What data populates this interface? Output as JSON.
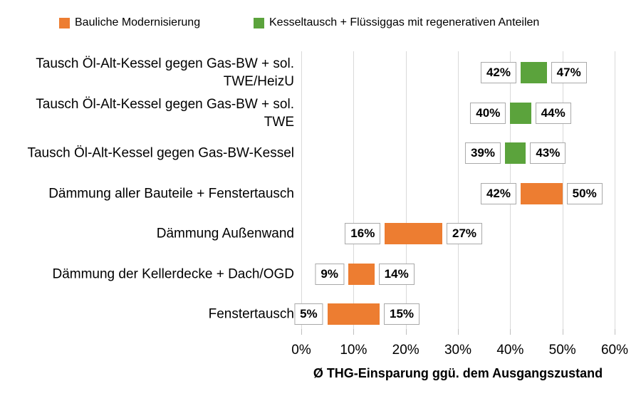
{
  "legend": [
    {
      "label": "Bauliche Modernisierung",
      "color": "#ED7D31"
    },
    {
      "label": "Kesseltausch + Flüssiggas mit regenerativen Anteilen",
      "color": "#5BA33C"
    }
  ],
  "colors": {
    "background": "#FFFFFF",
    "gridline": "#D9D9D9",
    "tick": "#BFBFBF",
    "value_box_border": "#A9A9A9",
    "text": "#000000"
  },
  "chart_data": {
    "type": "bar",
    "subtype": "horizontal-floating-range",
    "title": "",
    "xlabel": "Ø THG-Einsparung ggü. dem Ausgangszustand",
    "ylabel": "",
    "xlim": [
      0,
      60
    ],
    "x_ticks": [
      0,
      10,
      20,
      30,
      40,
      50,
      60
    ],
    "x_tick_labels": [
      "0%",
      "10%",
      "20%",
      "30%",
      "40%",
      "50%",
      "60%"
    ],
    "grid": true,
    "legend_position": "top",
    "categories": [
      "Tausch Öl-Alt-Kessel gegen Gas-BW + sol. TWE/HeizU",
      "Tausch Öl-Alt-Kessel gegen Gas-BW + sol. TWE",
      "Tausch Öl-Alt-Kessel gegen Gas-BW-Kessel",
      "Dämmung aller Bauteile + Fenstertausch",
      "Dämmung Außenwand",
      "Dämmung der Kellerdecke + Dach/OGD",
      "Fenstertausch"
    ],
    "bars": [
      {
        "category": "Tausch Öl-Alt-Kessel gegen Gas-BW + sol. TWE/HeizU",
        "series_index": 1,
        "from": 42,
        "to": 47,
        "from_label": "42%",
        "to_label": "47%"
      },
      {
        "category": "Tausch Öl-Alt-Kessel gegen Gas-BW + sol. TWE",
        "series_index": 1,
        "from": 40,
        "to": 44,
        "from_label": "40%",
        "to_label": "44%"
      },
      {
        "category": "Tausch Öl-Alt-Kessel gegen Gas-BW-Kessel",
        "series_index": 1,
        "from": 39,
        "to": 43,
        "from_label": "39%",
        "to_label": "43%"
      },
      {
        "category": "Dämmung aller Bauteile + Fenstertausch",
        "series_index": 0,
        "from": 42,
        "to": 50,
        "from_label": "42%",
        "to_label": "50%"
      },
      {
        "category": "Dämmung Außenwand",
        "series_index": 0,
        "from": 16,
        "to": 27,
        "from_label": "16%",
        "to_label": "27%"
      },
      {
        "category": "Dämmung der Kellerdecke + Dach/OGD",
        "series_index": 0,
        "from": 9,
        "to": 14,
        "from_label": "9%",
        "to_label": "14%"
      },
      {
        "category": "Fenstertausch",
        "series_index": 0,
        "from": 5,
        "to": 15,
        "from_label": "5%",
        "to_label": "15%"
      }
    ]
  }
}
